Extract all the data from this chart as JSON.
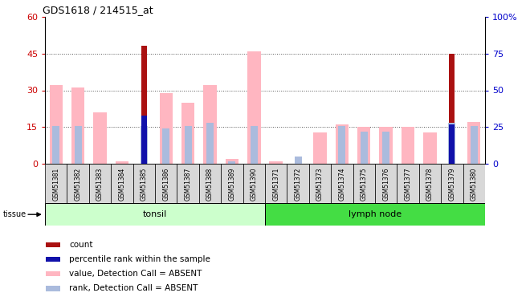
{
  "title": "GDS1618 / 214515_at",
  "samples": [
    "GSM51381",
    "GSM51382",
    "GSM51383",
    "GSM51384",
    "GSM51385",
    "GSM51386",
    "GSM51387",
    "GSM51388",
    "GSM51389",
    "GSM51390",
    "GSM51371",
    "GSM51372",
    "GSM51373",
    "GSM51374",
    "GSM51375",
    "GSM51376",
    "GSM51377",
    "GSM51378",
    "GSM51379",
    "GSM51380"
  ],
  "value_absent": [
    32,
    31,
    21,
    1,
    0,
    29,
    25,
    32,
    2,
    46,
    1,
    0,
    13,
    16,
    15,
    15,
    15,
    13,
    0,
    17
  ],
  "rank_absent": [
    26,
    26,
    0,
    0,
    26,
    24,
    26,
    28,
    2,
    26,
    0,
    5,
    0,
    26,
    22,
    22,
    0,
    0,
    28,
    26
  ],
  "count": [
    0,
    0,
    0,
    0,
    48,
    0,
    0,
    0,
    0,
    0,
    0,
    0,
    0,
    0,
    0,
    0,
    0,
    0,
    45,
    0
  ],
  "percentile_rank": [
    0,
    0,
    0,
    0,
    33,
    0,
    0,
    0,
    0,
    0,
    0,
    0,
    0,
    0,
    0,
    0,
    0,
    0,
    27,
    0
  ],
  "tonsil_count": 10,
  "lymph_count": 10,
  "ylim_left": [
    0,
    60
  ],
  "ylim_right": [
    0,
    100
  ],
  "yticks_left": [
    0,
    15,
    30,
    45,
    60
  ],
  "yticks_right": [
    0,
    25,
    50,
    75,
    100
  ],
  "color_count": "#AA1111",
  "color_percentile": "#1111AA",
  "color_value_absent": "#FFB6C1",
  "color_rank_absent": "#AABBDD",
  "color_tonsil_bg": "#ccffcc",
  "color_lymph_bg": "#44dd44",
  "color_xtickcell": "#d8d8d8",
  "color_tick_left": "#CC0000",
  "color_tick_right": "#0000CC"
}
